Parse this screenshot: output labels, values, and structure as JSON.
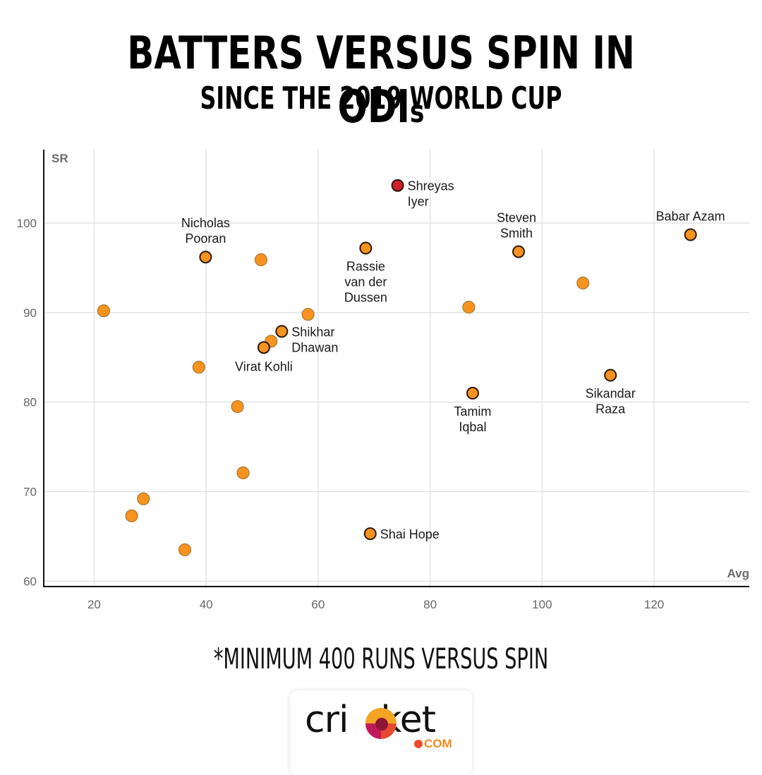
{
  "header": {
    "title_main": "BATTERS VERSUS SPIN IN ODI",
    "title_suffix": "s",
    "subtitle": "SINCE THE 2019 WORLD CUP"
  },
  "footnote": "*MINIMUM 400 RUNS VERSUS SPIN",
  "logo": {
    "brand": "cricket",
    "brand_prefix": "cri",
    "brand_suffix": "ket",
    "domain": "COM"
  },
  "colors": {
    "point_fill": "#f7931e",
    "highlight_fill": "#d0202a",
    "labeled_outline": "#2b1a0c",
    "unlabeled_outline": "#a37a35",
    "grid": "#e3e3e3",
    "axis": "#111111"
  },
  "chart_data": {
    "type": "scatter",
    "title": "BATTERS VERSUS SPIN IN ODIs",
    "subtitle": "SINCE THE 2019 WORLD CUP",
    "xlabel": "Avg",
    "ylabel": "SR",
    "xlim": [
      11,
      137
    ],
    "ylim": [
      59.4,
      108.2
    ],
    "xticks": [
      20,
      40,
      60,
      80,
      100,
      120
    ],
    "yticks": [
      60,
      70,
      80,
      90,
      100
    ],
    "grid": true,
    "points": [
      {
        "x": 74.2,
        "y": 104.2,
        "label": "Shreyas Iyer",
        "label_lines": [
          "Shreyas",
          "Iyer"
        ],
        "highlight": true,
        "label_pos": "right"
      },
      {
        "x": 126.5,
        "y": 98.7,
        "label": "Babar Azam",
        "label_lines": [
          "Babar Azam"
        ],
        "highlight": false,
        "label_pos": "top"
      },
      {
        "x": 68.5,
        "y": 97.2,
        "label": "Rassie van der Dussen",
        "label_lines": [
          "Rassie",
          "van der",
          "Dussen"
        ],
        "highlight": false,
        "label_pos": "bottom"
      },
      {
        "x": 95.8,
        "y": 96.8,
        "label": "Steven Smith",
        "label_lines": [
          "Steven",
          "Smith"
        ],
        "highlight": false,
        "label_pos": "top"
      },
      {
        "x": 39.9,
        "y": 96.2,
        "label": "Nicholas Pooran",
        "label_lines": [
          "Nicholas",
          "Pooran"
        ],
        "highlight": false,
        "label_pos": "top"
      },
      {
        "x": 49.8,
        "y": 95.9,
        "label": "",
        "highlight": false
      },
      {
        "x": 107.3,
        "y": 93.3,
        "label": "",
        "highlight": false
      },
      {
        "x": 86.9,
        "y": 90.6,
        "label": "",
        "highlight": false
      },
      {
        "x": 21.7,
        "y": 90.2,
        "label": "",
        "highlight": false
      },
      {
        "x": 58.2,
        "y": 89.8,
        "label": "",
        "highlight": false
      },
      {
        "x": 53.5,
        "y": 87.9,
        "label": "Shikhar Dhawan",
        "label_lines": [
          "Shikhar",
          "Dhawan"
        ],
        "highlight": false,
        "label_pos": "right"
      },
      {
        "x": 51.6,
        "y": 86.8,
        "label": "",
        "highlight": false
      },
      {
        "x": 50.3,
        "y": 86.1,
        "label": "Virat Kohli",
        "label_lines": [
          "Virat Kohli"
        ],
        "highlight": false,
        "label_pos": "bottom"
      },
      {
        "x": 38.7,
        "y": 83.9,
        "label": "",
        "highlight": false
      },
      {
        "x": 112.2,
        "y": 83.0,
        "label": "Sikandar Raza",
        "label_lines": [
          "Sikandar",
          "Raza"
        ],
        "highlight": false,
        "label_pos": "bottom"
      },
      {
        "x": 87.6,
        "y": 81.0,
        "label": "Tamim Iqbal",
        "label_lines": [
          "Tamim",
          "Iqbal"
        ],
        "highlight": false,
        "label_pos": "bottom"
      },
      {
        "x": 45.6,
        "y": 79.5,
        "label": "",
        "highlight": false
      },
      {
        "x": 46.6,
        "y": 72.1,
        "label": "",
        "highlight": false
      },
      {
        "x": 28.8,
        "y": 69.2,
        "label": "",
        "highlight": false
      },
      {
        "x": 26.7,
        "y": 67.3,
        "label": "",
        "highlight": false
      },
      {
        "x": 69.3,
        "y": 65.3,
        "label": "Shai Hope",
        "label_lines": [
          "Shai Hope"
        ],
        "highlight": false,
        "label_pos": "right"
      },
      {
        "x": 36.2,
        "y": 63.5,
        "label": "",
        "highlight": false
      }
    ]
  }
}
